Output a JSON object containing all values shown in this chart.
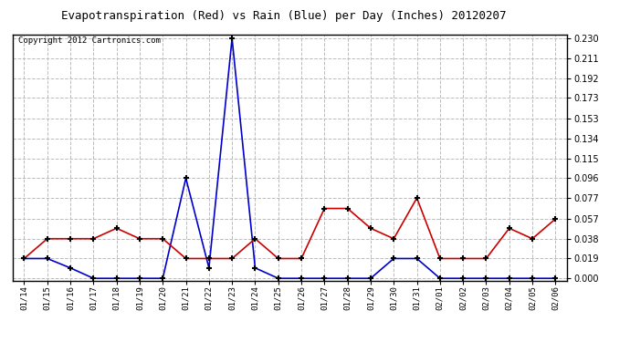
{
  "title": "Evapotranspiration (Red) vs Rain (Blue) per Day (Inches) 20120207",
  "copyright": "Copyright 2012 Cartronics.com",
  "dates": [
    "01/14",
    "01/15",
    "01/16",
    "01/17",
    "01/18",
    "01/19",
    "01/20",
    "01/21",
    "01/22",
    "01/23",
    "01/24",
    "01/25",
    "01/26",
    "01/27",
    "01/28",
    "01/29",
    "01/30",
    "01/31",
    "02/01",
    "02/02",
    "02/03",
    "02/04",
    "02/05",
    "02/06"
  ],
  "red_et": [
    0.019,
    0.038,
    0.038,
    0.038,
    0.048,
    0.038,
    0.038,
    0.019,
    0.019,
    0.019,
    0.038,
    0.019,
    0.019,
    0.067,
    0.067,
    0.048,
    0.038,
    0.077,
    0.019,
    0.019,
    0.019,
    0.048,
    0.038,
    0.057
  ],
  "blue_rain": [
    0.019,
    0.019,
    0.01,
    0.0,
    0.0,
    0.0,
    0.0,
    0.096,
    0.01,
    0.23,
    0.01,
    0.0,
    0.0,
    0.0,
    0.0,
    0.0,
    0.019,
    0.019,
    0.0,
    0.0,
    0.0,
    0.0,
    0.0,
    0.0
  ],
  "ylim_min": -0.002,
  "ylim_max": 0.234,
  "yticks": [
    0.0,
    0.019,
    0.038,
    0.057,
    0.077,
    0.096,
    0.115,
    0.134,
    0.153,
    0.173,
    0.192,
    0.211,
    0.23
  ],
  "bg_color": "#ffffff",
  "plot_bg": "#ffffff",
  "grid_color": "#bbbbbb",
  "red_color": "#cc0000",
  "blue_color": "#0000cc",
  "title_fontsize": 9,
  "copyright_fontsize": 6.5
}
